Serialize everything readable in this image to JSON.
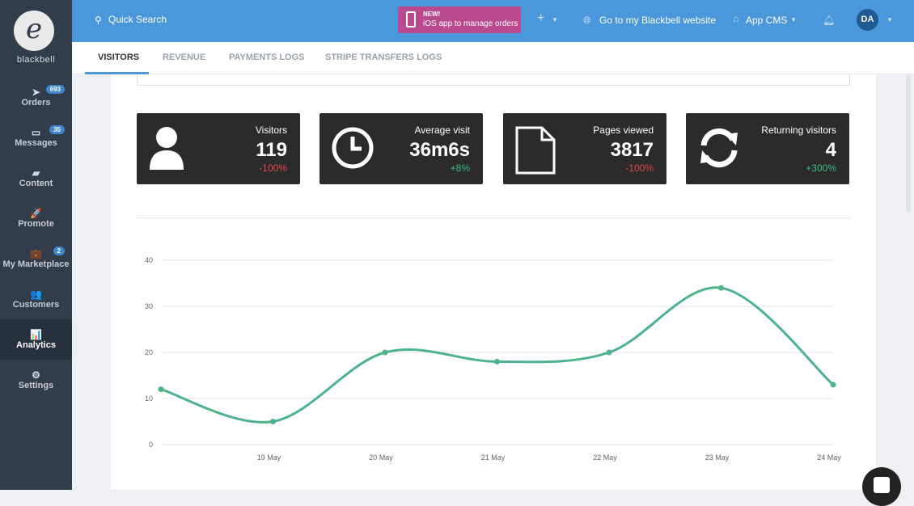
{
  "brand": {
    "name": "blackbell"
  },
  "sidebar": {
    "items": [
      {
        "label": "Orders",
        "icon": "➤",
        "badge": "693"
      },
      {
        "label": "Messages",
        "icon": "▭",
        "badge": "35"
      },
      {
        "label": "Content",
        "icon": "▰",
        "badge": null
      },
      {
        "label": "Promote",
        "icon": "🚀",
        "badge": null
      },
      {
        "label": "My Marketplace",
        "icon": "💼",
        "badge": "2"
      },
      {
        "label": "Customers",
        "icon": "👥",
        "badge": null
      },
      {
        "label": "Analytics",
        "icon": "📊",
        "badge": null
      },
      {
        "label": "Settings",
        "icon": "⚙",
        "badge": null
      }
    ]
  },
  "topbar": {
    "search_placeholder": "Quick Search",
    "promo_title": "NEW!",
    "promo_text": "iOS app to manage orders",
    "plus": "+",
    "website": "Go to my Blackbell website",
    "app": "App CMS",
    "avatar": "DA"
  },
  "tabs": [
    "VISITORS",
    "REVENUE",
    "PAYMENTS LOGS",
    "STRIPE TRANSFERS LOGS"
  ],
  "cards": [
    {
      "label": "Visitors",
      "value": "119",
      "change": "-100%",
      "trend": "down"
    },
    {
      "label": "Average visit",
      "value": "36m6s",
      "change": "+8%",
      "trend": "up"
    },
    {
      "label": "Pages viewed",
      "value": "3817",
      "change": "-100%",
      "trend": "down"
    },
    {
      "label": "Returning visitors",
      "value": "4",
      "change": "+300%",
      "trend": "up"
    }
  ],
  "colors": {
    "up": "#3dbd84",
    "down": "#e5484d",
    "line": "#4db38a"
  },
  "chart_data": {
    "type": "line",
    "categories": [
      "",
      "19 May",
      "20 May",
      "21 May",
      "22 May",
      "23 May",
      "24 May"
    ],
    "series": [
      {
        "name": "Visitors",
        "values": [
          12,
          5,
          20,
          18,
          20,
          34,
          13
        ]
      }
    ],
    "yticks": [
      0,
      10,
      20,
      30,
      40
    ],
    "ylim": [
      0,
      40
    ],
    "grid": true
  }
}
